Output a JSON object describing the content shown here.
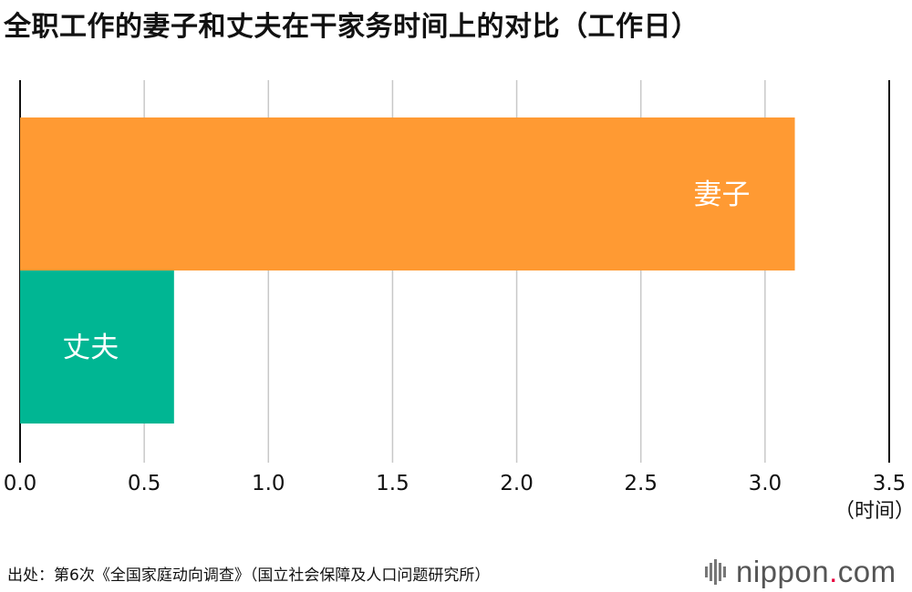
{
  "title": "全职工作的妻子和丈夫在干家务时间上的对比（工作日）",
  "unit_label": "（时间）",
  "source": "出处：第6次《全国家庭动向调查》（国立社会保障及人口问题研究所）",
  "logo": {
    "name": "nippon",
    "dot": ".",
    "tld": "com"
  },
  "chart_data": {
    "type": "bar",
    "orientation": "horizontal",
    "categories": [
      "妻子",
      "丈夫"
    ],
    "values": [
      3.12,
      0.62
    ],
    "colors": [
      "#ff9a33",
      "#00b693"
    ],
    "xlim": [
      0,
      3.5
    ],
    "xticks": [
      "0.0",
      "0.5",
      "1.0",
      "1.5",
      "2.0",
      "2.5",
      "3.0",
      "3.5"
    ],
    "grid": true
  }
}
